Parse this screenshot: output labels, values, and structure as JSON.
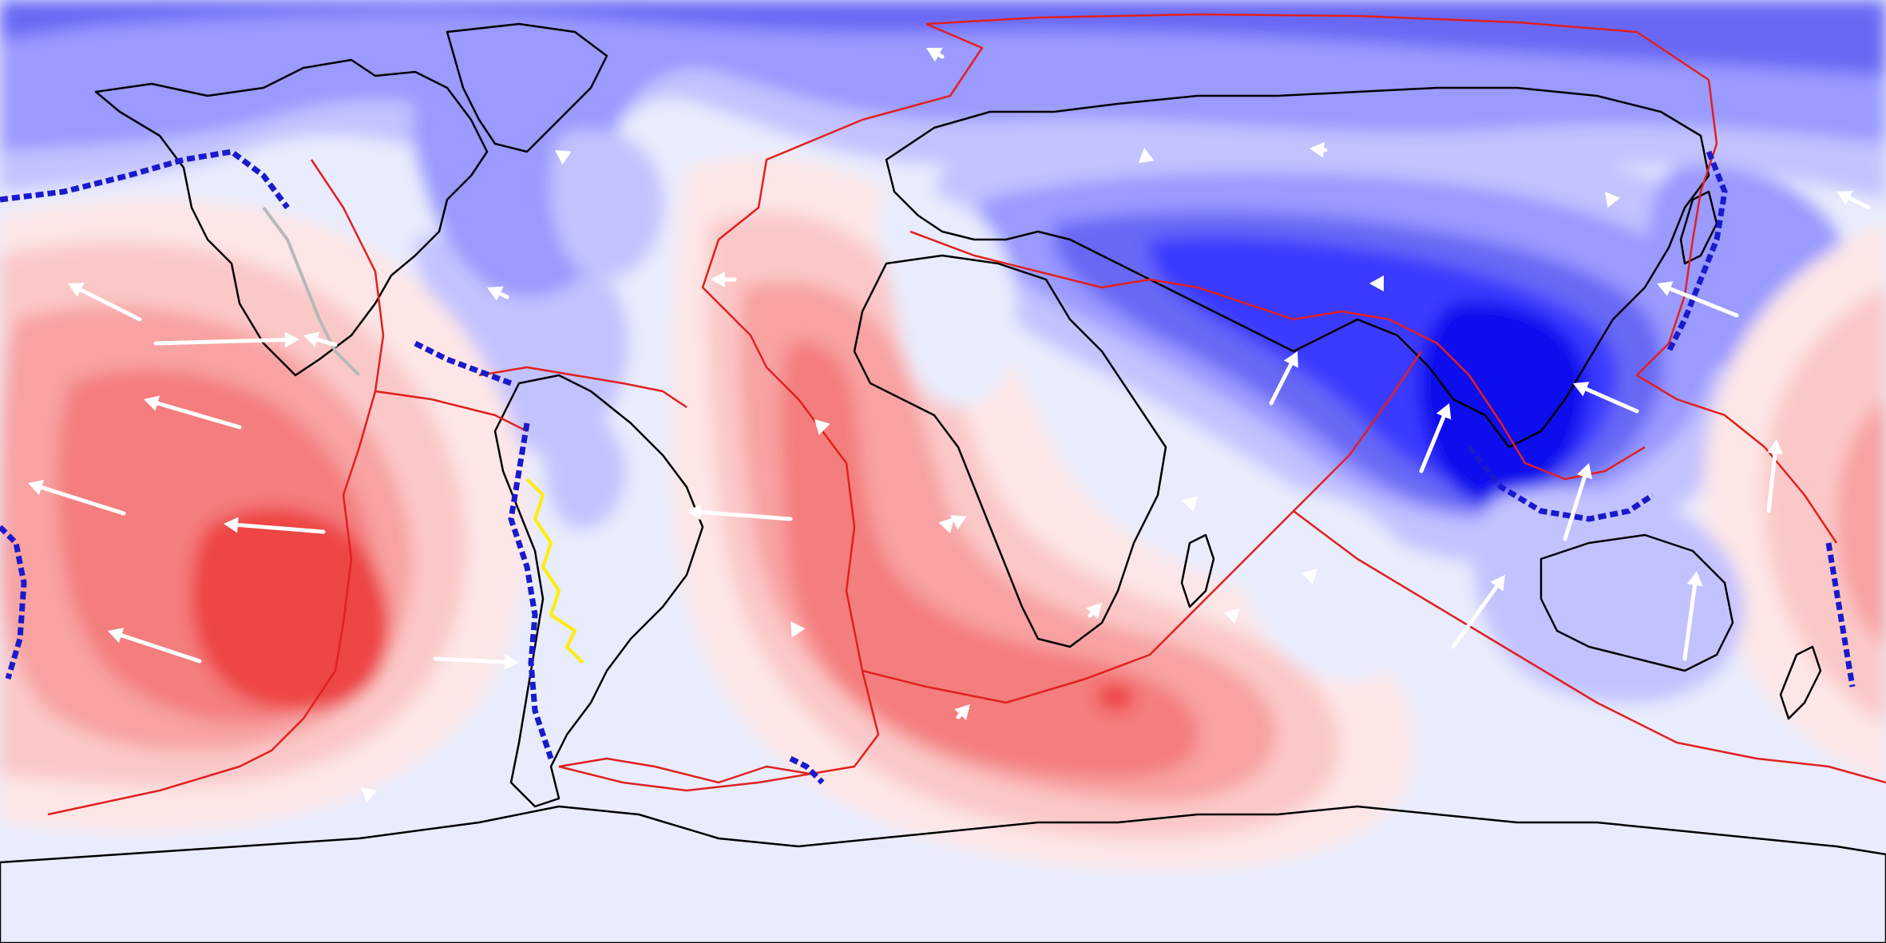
{
  "map": {
    "projection": "equirectangular",
    "longitude_range": [
      -180,
      180
    ],
    "latitude_range": [
      -90,
      90
    ],
    "central_meridian": 0,
    "field_colors": {
      "negative_strong": "#0a0aee",
      "negative_mid2": "#3a3aff",
      "negative_mid": "#6868f5",
      "negative_light": "#9a9aff",
      "negative_pale": "#c2c2ff",
      "near_zero": "#e8ecfc",
      "positive_pale": "#fde6e6",
      "positive_light": "#fbc8c8",
      "positive_mid": "#f8a2a2",
      "positive_mid2": "#f47d7d",
      "positive_strong": "#ee4444"
    },
    "line_colors": {
      "coastline": "#000000",
      "plate_boundary": "#e02020",
      "subduction_zone": "#1a1acc",
      "continental_boundary_andes": "#ffee00",
      "continental_boundary_cordillera": "#b8b8b8",
      "velocity_vector": "#ffffff"
    }
  }
}
